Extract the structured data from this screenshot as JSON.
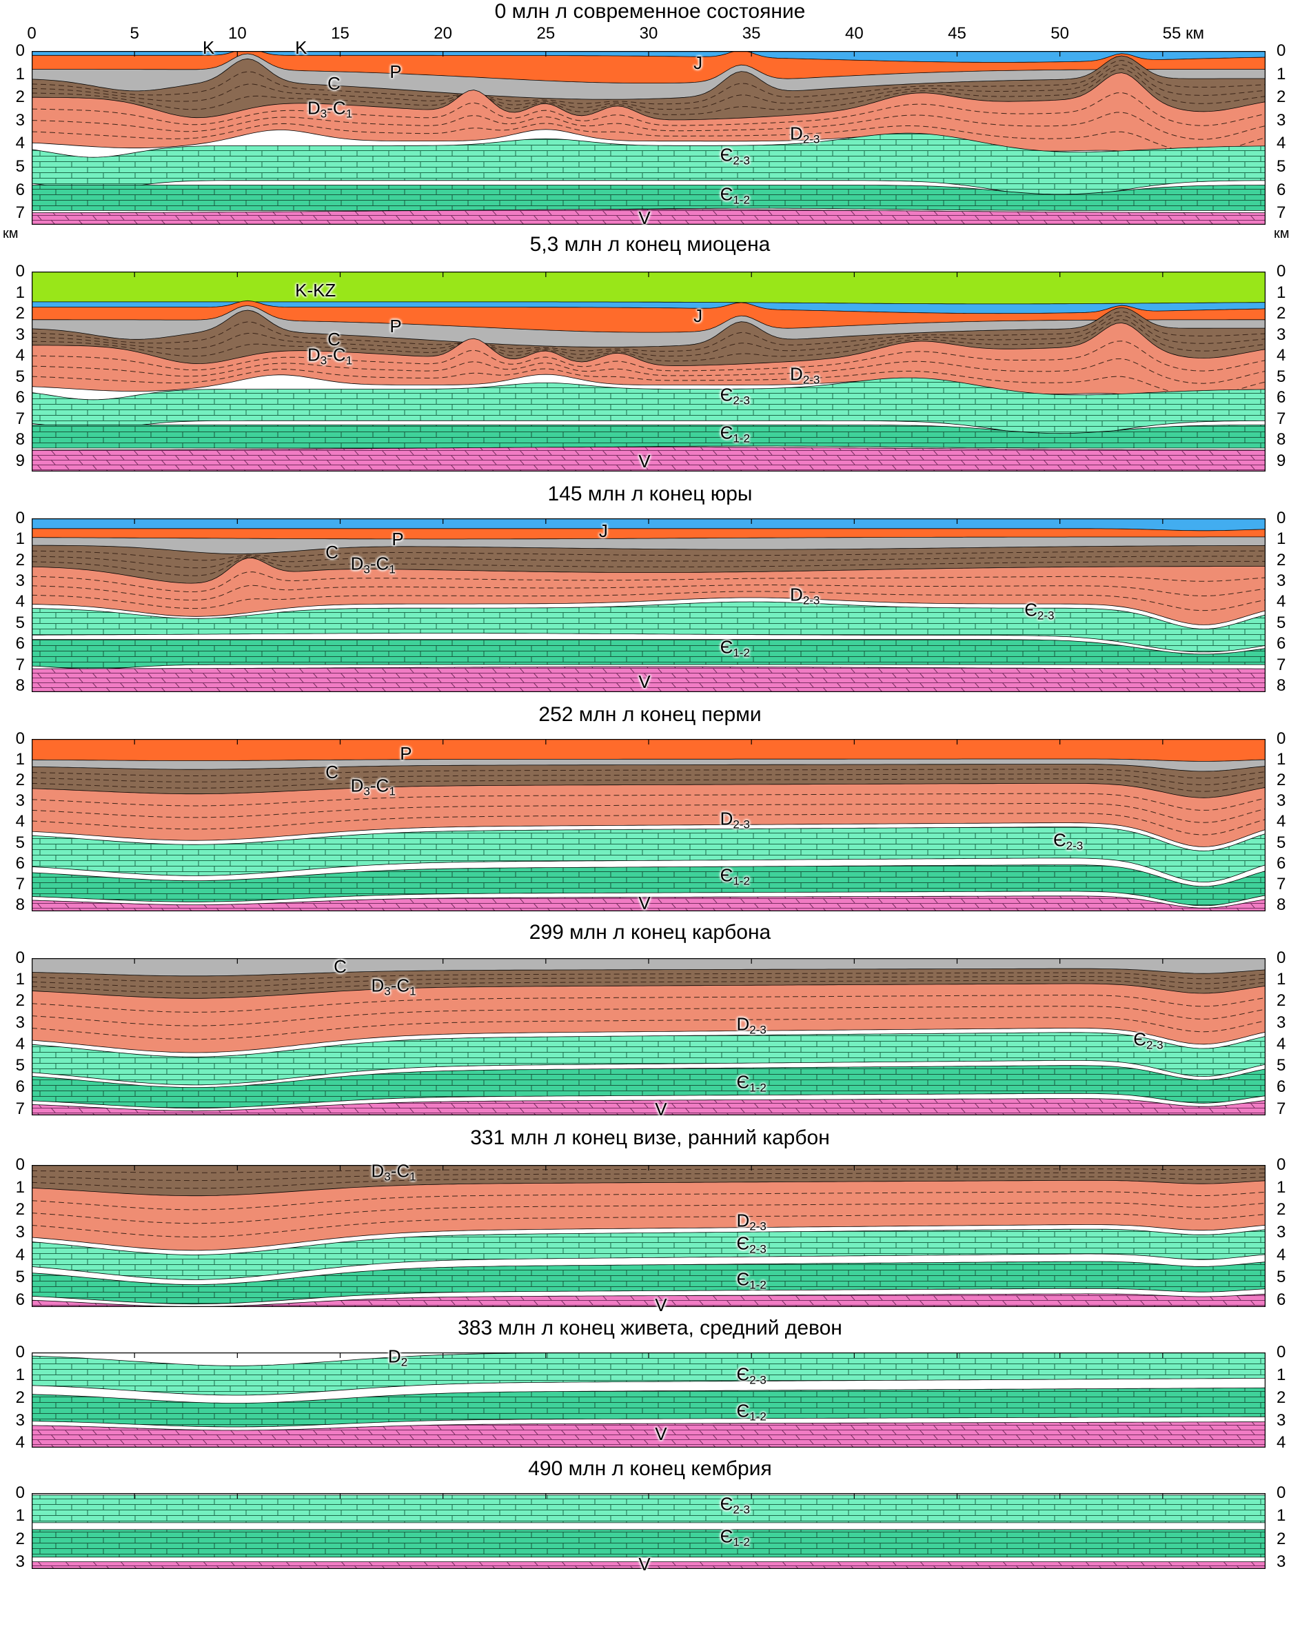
{
  "figure": {
    "km_unit": "км",
    "km_ticks": [
      "0",
      "5",
      "10",
      "15",
      "20",
      "25",
      "30",
      "35",
      "40",
      "45",
      "50",
      "55 км"
    ],
    "depth_unit_left": "км",
    "depth_unit_right": "км"
  },
  "colors": {
    "kkz": "#99e619",
    "jurassic": "#42adf0",
    "permian": "#ff6b2b",
    "carboniferous": "#b4b4b4",
    "d3c1": "#8a6a52",
    "d23": "#e86b47",
    "d23_light": "#ef8d73",
    "cm23": "#74f0c0",
    "cm12": "#3fd29a",
    "vendian": "#f17cc4",
    "white_gap": "#ffffff"
  },
  "panels": [
    {
      "title": "0 млн л современное состояние",
      "depth_labels": [
        "0",
        "1",
        "2",
        "3",
        "4",
        "5",
        "6",
        "7"
      ],
      "depth_max": 7.5,
      "show_km_axis": true,
      "show_units": true,
      "kkz": false,
      "labels": [
        {
          "text": "K",
          "km": 8.6,
          "d": -0.15
        },
        {
          "text": "K",
          "km": 13.1,
          "d": -0.15
        },
        {
          "text": "C",
          "km": 14.7,
          "d": 1.4
        },
        {
          "text": "P",
          "km": 17.7,
          "d": 0.9
        },
        {
          "text": "J",
          "km": 32.4,
          "d": 0.5
        },
        {
          "text": "D",
          "sub1": "3",
          "mid": "-C",
          "sub2": "1",
          "km": 14.5,
          "d": 2.6
        },
        {
          "text": "D",
          "sub1": "2-3",
          "km": 37.6,
          "d": 3.7
        },
        {
          "text": "Є",
          "sub1": "2-3",
          "km": 34.2,
          "d": 4.6
        },
        {
          "text": "Є",
          "sub1": "1-2",
          "km": 34.2,
          "d": 6.3
        },
        {
          "text": "V",
          "km": 29.8,
          "d": 7.2
        }
      ]
    },
    {
      "title": "5,3 млн л конец миоцена",
      "depth_labels": [
        "0",
        "1",
        "2",
        "3",
        "4",
        "5",
        "6",
        "7",
        "8",
        "9"
      ],
      "depth_max": 9.5,
      "kkz": true,
      "labels": [
        {
          "text": "K-KZ",
          "km": 13.8,
          "d": 0.9
        },
        {
          "text": "J",
          "km": 32.4,
          "d": 2.1
        },
        {
          "text": "C",
          "km": 14.7,
          "d": 3.2
        },
        {
          "text": "P",
          "km": 17.7,
          "d": 2.6
        },
        {
          "text": "D",
          "sub1": "3",
          "mid": "-C",
          "sub2": "1",
          "km": 14.5,
          "d": 4.1
        },
        {
          "text": "D",
          "sub1": "2-3",
          "km": 37.6,
          "d": 5.0
        },
        {
          "text": "Є",
          "sub1": "2-3",
          "km": 34.2,
          "d": 6.0
        },
        {
          "text": "Є",
          "sub1": "1-2",
          "km": 34.2,
          "d": 7.8
        },
        {
          "text": "V",
          "km": 29.8,
          "d": 9.0
        }
      ]
    },
    {
      "title": "145 млн л конец юры",
      "depth_labels": [
        "0",
        "1",
        "2",
        "3",
        "4",
        "5",
        "6",
        "7",
        "8"
      ],
      "depth_max": 8.3,
      "labels": [
        {
          "text": "J",
          "km": 27.8,
          "d": 0.6
        },
        {
          "text": "P",
          "km": 17.8,
          "d": 1.0
        },
        {
          "text": "C",
          "km": 14.6,
          "d": 1.6
        },
        {
          "text": "D",
          "sub1": "3",
          "mid": "-C",
          "sub2": "1",
          "km": 16.6,
          "d": 2.3
        },
        {
          "text": "D",
          "sub1": "2-3",
          "km": 37.6,
          "d": 3.8
        },
        {
          "text": "Є",
          "sub1": "2-3",
          "km": 49.0,
          "d": 4.5
        },
        {
          "text": "Є",
          "sub1": "1-2",
          "km": 34.2,
          "d": 6.3
        },
        {
          "text": "V",
          "km": 29.8,
          "d": 7.8
        }
      ]
    },
    {
      "title": "252 млн л конец перми",
      "depth_labels": [
        "0",
        "1",
        "2",
        "3",
        "4",
        "5",
        "6",
        "7",
        "8"
      ],
      "depth_max": 8.3,
      "labels": [
        {
          "text": "P",
          "km": 18.2,
          "d": 0.7
        },
        {
          "text": "C",
          "km": 14.6,
          "d": 1.6
        },
        {
          "text": "D",
          "sub1": "3",
          "mid": "-C",
          "sub2": "1",
          "km": 16.6,
          "d": 2.4
        },
        {
          "text": "D",
          "sub1": "2-3",
          "km": 34.2,
          "d": 4.0
        },
        {
          "text": "Є",
          "sub1": "2-3",
          "km": 50.4,
          "d": 5.0
        },
        {
          "text": "Є",
          "sub1": "1-2",
          "km": 34.2,
          "d": 6.7
        },
        {
          "text": "V",
          "km": 29.8,
          "d": 7.9
        }
      ]
    },
    {
      "title": "299 млн л конец карбона",
      "depth_labels": [
        "0",
        "1",
        "2",
        "3",
        "4",
        "5",
        "6",
        "7"
      ],
      "depth_max": 7.3,
      "labels": [
        {
          "text": "C",
          "km": 15.0,
          "d": 0.4
        },
        {
          "text": "D",
          "sub1": "3",
          "mid": "-C",
          "sub2": "1",
          "km": 17.6,
          "d": 1.4
        },
        {
          "text": "D",
          "sub1": "2-3",
          "km": 35.0,
          "d": 3.2
        },
        {
          "text": "Є",
          "sub1": "2-3",
          "km": 54.3,
          "d": 3.9
        },
        {
          "text": "Є",
          "sub1": "1-2",
          "km": 35.0,
          "d": 5.9
        },
        {
          "text": "V",
          "km": 30.6,
          "d": 7.0
        }
      ]
    },
    {
      "title": "331 млн л конец визе, ранний карбон",
      "depth_labels": [
        "0",
        "1",
        "2",
        "3",
        "4",
        "5",
        "6"
      ],
      "depth_max": 6.3,
      "labels": [
        {
          "text": "D",
          "sub1": "3",
          "mid": "-C",
          "sub2": "1",
          "km": 17.6,
          "d": 0.4
        },
        {
          "text": "D",
          "sub1": "2-3",
          "km": 35.0,
          "d": 2.6
        },
        {
          "text": "Є",
          "sub1": "2-3",
          "km": 35.0,
          "d": 3.6
        },
        {
          "text": "Є",
          "sub1": "1-2",
          "km": 35.0,
          "d": 5.2
        },
        {
          "text": "V",
          "km": 30.6,
          "d": 6.2
        }
      ]
    },
    {
      "title": "383 млн л конец живета, средний девон",
      "depth_labels": [
        "0",
        "1",
        "2",
        "3",
        "4"
      ],
      "depth_max": 4.2,
      "labels": [
        {
          "text": "D",
          "sub1": "2",
          "km": 17.8,
          "d": 0.3
        },
        {
          "text": "Є",
          "sub1": "2-3",
          "km": 35.0,
          "d": 1.1
        },
        {
          "text": "Є",
          "sub1": "1-2",
          "km": 35.0,
          "d": 2.7
        },
        {
          "text": "V",
          "km": 30.6,
          "d": 3.6
        }
      ]
    },
    {
      "title": "490 млн л конец кембрия",
      "depth_labels": [
        "0",
        "1",
        "2",
        "3"
      ],
      "depth_max": 3.3,
      "labels": [
        {
          "text": "Є",
          "sub1": "2-3",
          "km": 34.2,
          "d": 0.6
        },
        {
          "text": "Є",
          "sub1": "1-2",
          "km": 34.2,
          "d": 2.0
        },
        {
          "text": "V",
          "km": 29.8,
          "d": 3.1
        }
      ]
    }
  ]
}
